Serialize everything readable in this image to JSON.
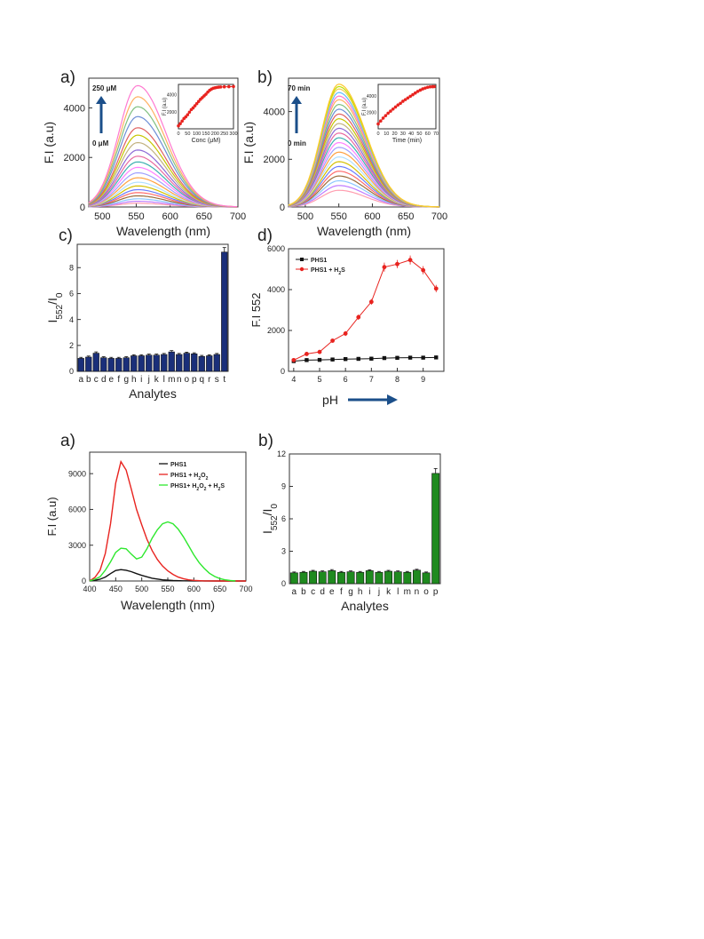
{
  "chart_data": [
    {
      "panel": "a)",
      "type": "line",
      "xlabel": "Wavelength (nm)",
      "ylabel": "F.I (a.u)",
      "xlim": [
        480,
        700
      ],
      "ylim": [
        0,
        5200
      ],
      "xticks": [
        500,
        550,
        600,
        650,
        700
      ],
      "yticks": [
        0,
        2000,
        4000
      ],
      "x": [
        480,
        490,
        500,
        510,
        520,
        530,
        540,
        550,
        560,
        570,
        580,
        590,
        600,
        610,
        620,
        630,
        640,
        650,
        660,
        670,
        680,
        690,
        700
      ],
      "curve_peaks": [
        150,
        230,
        330,
        450,
        580,
        700,
        850,
        1000,
        1180,
        1380,
        1600,
        1820,
        2050,
        2300,
        2600,
        2900,
        3200,
        3650,
        4050,
        4450,
        4900
      ],
      "curve_colors": [
        "#ff9eb0",
        "#c07cff",
        "#8cc7ff",
        "#9a6b3a",
        "#ff6b6b",
        "#6b7dff",
        "#d4c000",
        "#b0e0ff",
        "#ffa040",
        "#a0a0ff",
        "#ff80ff",
        "#3cb0b0",
        "#e86aa0",
        "#8e6bd6",
        "#c2b280",
        "#c6c600",
        "#e06060",
        "#6d8ed6",
        "#80c080",
        "#ffb060",
        "#ff7ad0"
      ],
      "annotation_top": "250 μM",
      "annotation_bottom": "0 μM",
      "inset": {
        "xlabel": "Conc (μM)",
        "ylabel": "F.I (a.u)",
        "xlim": [
          0,
          300
        ],
        "ylim": [
          0,
          5200
        ],
        "xticks": [
          0,
          50,
          100,
          150,
          200,
          250,
          300
        ],
        "yticks": [
          2000,
          4000
        ],
        "x": [
          0,
          10,
          20,
          30,
          40,
          50,
          60,
          70,
          80,
          90,
          100,
          110,
          120,
          130,
          140,
          150,
          160,
          170,
          180,
          190,
          200,
          210,
          220,
          230,
          250,
          275,
          300
        ],
        "y": [
          350,
          600,
          900,
          1200,
          1400,
          1650,
          1950,
          2250,
          2450,
          2700,
          2950,
          3200,
          3450,
          3650,
          3850,
          4050,
          4300,
          4500,
          4650,
          4750,
          4800,
          4850,
          4880,
          4900,
          4920,
          4930,
          4950
        ]
      }
    },
    {
      "panel": "b)",
      "type": "line",
      "xlabel": "Wavelength (nm)",
      "ylabel": "F.I (a.u)",
      "xlim": [
        475,
        700
      ],
      "ylim": [
        0,
        5400
      ],
      "xticks": [
        500,
        550,
        600,
        650,
        700
      ],
      "yticks": [
        0,
        2000,
        4000
      ],
      "curve_peaks": [
        700,
        900,
        1100,
        1300,
        1500,
        1700,
        1900,
        2100,
        2300,
        2500,
        2700,
        2900,
        3100,
        3300,
        3500,
        3700,
        3900,
        4100,
        4300,
        4500,
        4650,
        4800,
        4950,
        5050,
        5150
      ],
      "curve_colors": [
        "#ff9eb0",
        "#c07cff",
        "#8cc7ff",
        "#9a6b3a",
        "#ff6b6b",
        "#6b7dff",
        "#d4c000",
        "#b0e0ff",
        "#ffa040",
        "#a0a0ff",
        "#ff80ff",
        "#3cb0b0",
        "#e86aa0",
        "#8e6bd6",
        "#c2b280",
        "#c6c600",
        "#e06060",
        "#6d8ed6",
        "#80c080",
        "#ffb060",
        "#ff7ad0",
        "#60c0ff",
        "#f0d050",
        "#c0e000",
        "#ffc830"
      ],
      "annotation_top": "70 min",
      "annotation_bottom": "0 min",
      "inset": {
        "xlabel": "Time (min)",
        "ylabel": "F.I (a.u)",
        "xlim": [
          0,
          70
        ],
        "ylim": [
          0,
          5400
        ],
        "xticks": [
          0,
          10,
          20,
          30,
          40,
          50,
          60,
          70
        ],
        "yticks": [
          2000,
          4000
        ],
        "x": [
          0,
          3,
          6,
          9,
          12,
          15,
          18,
          21,
          24,
          27,
          30,
          33,
          36,
          39,
          42,
          45,
          48,
          51,
          54,
          57,
          60,
          63,
          66,
          68
        ],
        "y": [
          600,
          950,
          1300,
          1600,
          1900,
          2150,
          2400,
          2650,
          2900,
          3100,
          3350,
          3550,
          3750,
          3950,
          4150,
          4350,
          4550,
          4700,
          4850,
          4950,
          5050,
          5100,
          5120,
          5130
        ]
      }
    },
    {
      "panel": "c)",
      "type": "bar",
      "xlabel": "Analytes",
      "ylabel": "I552/I0",
      "ylim": [
        0,
        9.8
      ],
      "yticks": [
        0,
        2,
        4,
        6,
        8
      ],
      "categories": [
        "a",
        "b",
        "c",
        "d",
        "e",
        "f",
        "g",
        "h",
        "i",
        "j",
        "k",
        "l",
        "m",
        "n",
        "o",
        "p",
        "q",
        "r",
        "s",
        "t"
      ],
      "values": [
        1.0,
        1.1,
        1.4,
        1.05,
        1.0,
        1.0,
        1.05,
        1.2,
        1.2,
        1.25,
        1.25,
        1.3,
        1.5,
        1.3,
        1.4,
        1.35,
        1.15,
        1.2,
        1.3,
        9.2
      ],
      "errors": [
        0.08,
        0.08,
        0.1,
        0.08,
        0.08,
        0.08,
        0.08,
        0.08,
        0.08,
        0.08,
        0.08,
        0.08,
        0.1,
        0.08,
        0.08,
        0.08,
        0.08,
        0.08,
        0.08,
        0.35
      ],
      "color": "#1a2f7a"
    },
    {
      "panel": "d)",
      "type": "line",
      "xlabel": "pH",
      "ylabel": "F.I 552",
      "xlim": [
        3.8,
        9.8
      ],
      "ylim": [
        0,
        6000
      ],
      "xticks": [
        4,
        5,
        6,
        7,
        8,
        9
      ],
      "yticks": [
        0,
        2000,
        4000,
        6000
      ],
      "x": [
        4.0,
        4.5,
        5.0,
        5.5,
        6.0,
        6.5,
        7.0,
        7.5,
        8.0,
        8.5,
        9.0,
        9.5
      ],
      "series": [
        {
          "name": "PHS1",
          "color": "#111111",
          "values": [
            500,
            550,
            560,
            580,
            600,
            610,
            620,
            650,
            660,
            670,
            670,
            680
          ],
          "errors": [
            90,
            90,
            90,
            90,
            90,
            90,
            90,
            90,
            90,
            90,
            90,
            90
          ]
        },
        {
          "name": "PHS1 + H₂S",
          "color": "#e8231f",
          "values": [
            550,
            850,
            950,
            1500,
            1850,
            2650,
            3400,
            5100,
            5250,
            5450,
            4950,
            4050
          ],
          "errors": [
            80,
            90,
            90,
            90,
            120,
            130,
            140,
            220,
            200,
            220,
            200,
            180
          ]
        }
      ]
    },
    {
      "panel": "a)",
      "type": "line",
      "xlabel": "Wavelength (nm)",
      "ylabel": "F.I (a.u)",
      "xlim": [
        400,
        700
      ],
      "ylim": [
        0,
        10800
      ],
      "xticks": [
        400,
        450,
        500,
        550,
        600,
        650,
        700
      ],
      "yticks": [
        0,
        3000,
        6000,
        9000
      ],
      "series": [
        {
          "name": "PHS1",
          "color": "#111111",
          "x": [
            400,
            410,
            420,
            430,
            440,
            450,
            460,
            470,
            480,
            490,
            500,
            520,
            540,
            560,
            580,
            600,
            650,
            700
          ],
          "values": [
            0,
            60,
            150,
            330,
            620,
            880,
            950,
            900,
            780,
            620,
            470,
            230,
            100,
            40,
            15,
            5,
            0,
            0
          ]
        },
        {
          "name": "PHS1 + H₂O₂",
          "color": "#e8231f",
          "x": [
            400,
            410,
            420,
            430,
            440,
            450,
            460,
            470,
            480,
            490,
            500,
            510,
            520,
            530,
            540,
            550,
            560,
            570,
            580,
            590,
            600,
            620,
            650,
            700
          ],
          "values": [
            0,
            300,
            900,
            2300,
            4800,
            8200,
            10000,
            9300,
            7700,
            6000,
            4700,
            3500,
            2550,
            1800,
            1250,
            850,
            550,
            330,
            190,
            100,
            50,
            10,
            0,
            0
          ]
        },
        {
          "name": "PHS1+ H₂O₂ + H₂S",
          "color": "#2ee82e",
          "x": [
            400,
            410,
            420,
            430,
            440,
            450,
            460,
            470,
            480,
            490,
            500,
            510,
            520,
            530,
            540,
            550,
            560,
            570,
            580,
            590,
            600,
            610,
            620,
            630,
            640,
            650,
            660,
            670,
            680
          ],
          "values": [
            0,
            150,
            350,
            900,
            1600,
            2400,
            2750,
            2700,
            2250,
            1850,
            2000,
            2700,
            3600,
            4300,
            4800,
            4950,
            4800,
            4350,
            3700,
            2950,
            2200,
            1550,
            1050,
            650,
            380,
            200,
            100,
            40,
            0
          ]
        }
      ]
    },
    {
      "panel": "b)",
      "type": "bar",
      "xlabel": "Analytes",
      "ylabel": "I552/I0",
      "ylim": [
        0,
        12
      ],
      "yticks": [
        0,
        3,
        6,
        9,
        12
      ],
      "categories": [
        "a",
        "b",
        "c",
        "d",
        "e",
        "f",
        "g",
        "h",
        "i",
        "j",
        "k",
        "l",
        "m",
        "n",
        "o",
        "p"
      ],
      "values": [
        1.0,
        1.05,
        1.15,
        1.1,
        1.2,
        1.05,
        1.1,
        1.05,
        1.2,
        1.05,
        1.15,
        1.1,
        1.05,
        1.25,
        1.0,
        10.2
      ],
      "errors": [
        0.08,
        0.08,
        0.08,
        0.08,
        0.1,
        0.08,
        0.08,
        0.08,
        0.08,
        0.08,
        0.08,
        0.08,
        0.08,
        0.08,
        0.08,
        0.45
      ],
      "color": "#1f8a1f"
    }
  ]
}
